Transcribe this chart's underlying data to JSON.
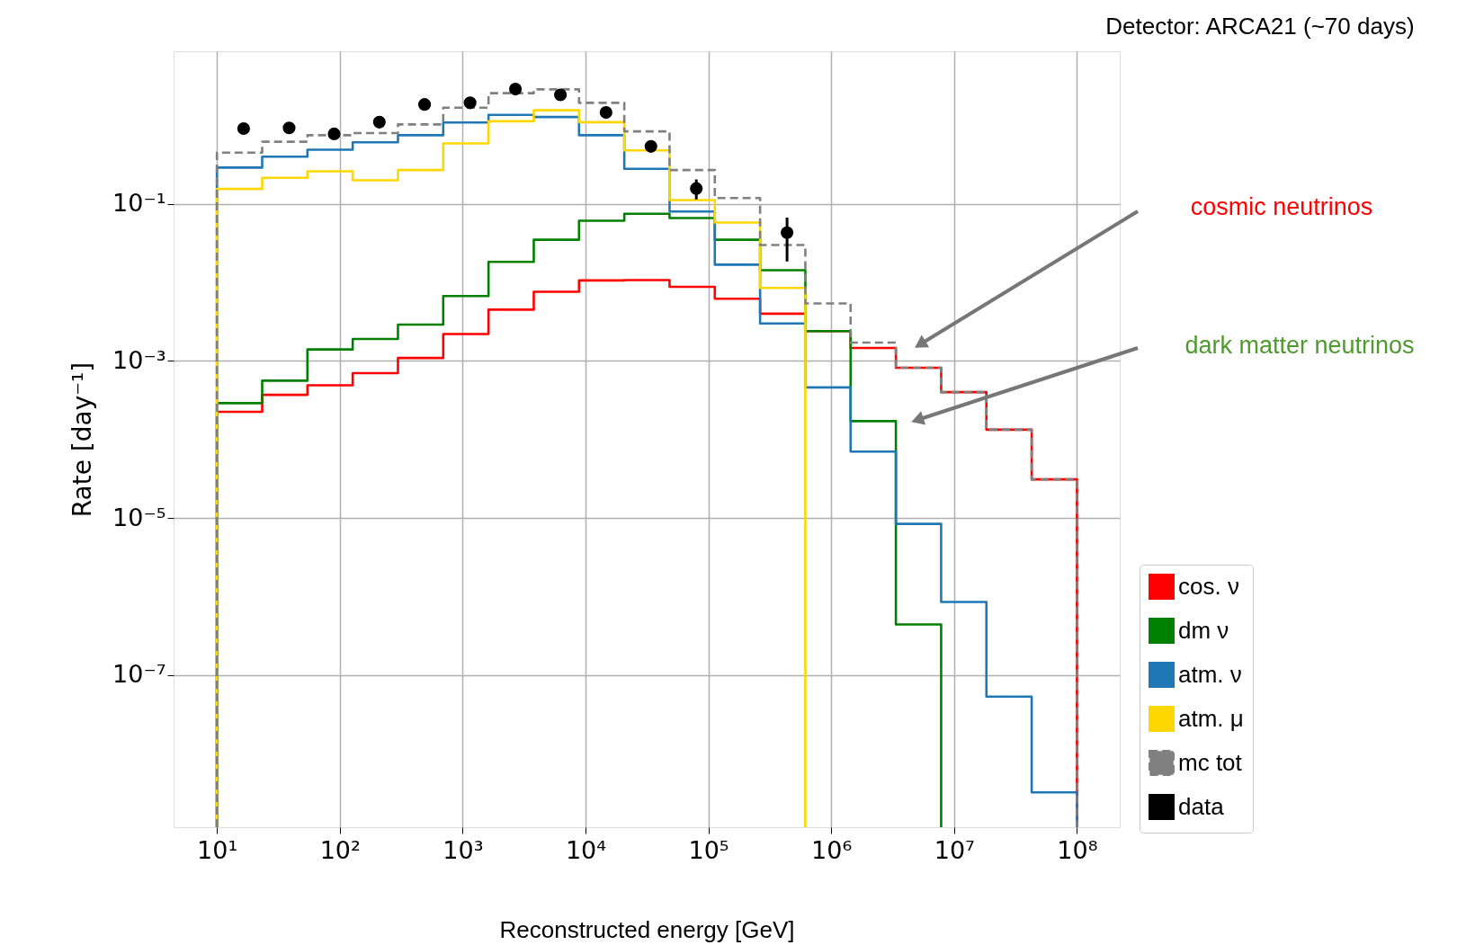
{
  "chart_data": {
    "type": "histogram",
    "title": "Detector: ARCA21 (~70 days)",
    "xlabel": "Reconstructed energy [GeV]",
    "ylabel": "Rate [day⁻¹]",
    "bins": [
      10,
      23.36,
      54.56,
      127.4,
      297.6,
      695.2,
      1624,
      3793,
      8859,
      20691,
      48329,
      112884,
      263665,
      615848,
      1438450,
      3359818,
      7847600,
      18329807,
      42813324,
      100000000
    ],
    "series": [
      {
        "name": "cos. ν",
        "color": "#ff0000",
        "values": [
          0.000225,
          0.00037,
          0.00049,
          0.0007,
          0.00109,
          0.0022,
          0.0045,
          0.0076,
          0.0106,
          0.0107,
          0.0088,
          0.0062,
          0.004,
          0.0024,
          0.00146,
          0.00082,
          0.0004,
          0.000133,
          3.1e-05
        ]
      },
      {
        "name": "dm ν",
        "color": "#008000",
        "bins": [
          10,
          23.36,
          54.56,
          127.4,
          297.6,
          695.2,
          1624,
          3793,
          8859,
          20691,
          48329,
          112884,
          263665,
          615848,
          1438450,
          3359818,
          7847600
        ],
        "values": [
          0.00029,
          0.00056,
          0.0014,
          0.0019,
          0.0029,
          0.0067,
          0.0183,
          0.035,
          0.061,
          0.075,
          0.066,
          0.035,
          0.0143,
          0.0024,
          0.000171,
          4.4e-07
        ]
      },
      {
        "name": "atm. ν",
        "color": "#1f77b4",
        "values": [
          0.29,
          0.4,
          0.49,
          0.61,
          0.75,
          1.09,
          1.36,
          1.28,
          0.75,
          0.28,
          0.08,
          0.0168,
          0.003,
          0.00046,
          7e-05,
          8.4e-06,
          8.5e-07,
          5.3e-08,
          3.2e-09
        ]
      },
      {
        "name": "atm. μ",
        "color": "#ffd700",
        "bins": [
          10,
          23.36,
          54.56,
          127.4,
          297.6,
          695.2,
          1624,
          3793,
          8859,
          20691,
          48329,
          112884,
          263665,
          615848
        ],
        "values": [
          0.155,
          0.215,
          0.26,
          0.2,
          0.27,
          0.59,
          1.13,
          1.56,
          1.1,
          0.48,
          0.112,
          0.058,
          0.0085
        ]
      },
      {
        "name": "mc tot",
        "color": "#808080",
        "line_style": "dashed",
        "values": [
          0.45,
          0.62,
          0.75,
          0.8,
          1.03,
          1.68,
          2.57,
          2.88,
          1.94,
          0.84,
          0.27,
          0.119,
          0.03,
          0.0054,
          0.00171,
          0.00082,
          0.0004,
          0.000133,
          3.1e-05
        ]
      },
      {
        "name": "data",
        "type": "scatter",
        "color": "#000000",
        "marker": "circle",
        "x": [
          16.5,
          38.7,
          90,
          210,
          490,
          1150,
          2690,
          6250,
          14700,
          34100,
          79800,
          437000
        ],
        "values": [
          0.91,
          0.93,
          0.78,
          1.1,
          1.85,
          1.94,
          2.9,
          2.45,
          1.46,
          0.54,
          0.157,
          0.043
        ],
        "errors": [
          null,
          null,
          null,
          null,
          null,
          null,
          null,
          null,
          null,
          null,
          [
            0.114,
            0.205
          ],
          [
            0.0185,
            0.067
          ]
        ]
      }
    ],
    "annotations": [
      "cosmic neutrinos",
      "dark matter neutrinos"
    ],
    "log": "xy",
    "xlim": [
      4.44,
      223000000
    ],
    "ylim": [
      1.15e-09,
      8.8
    ],
    "xticks": [
      {
        "value": 10,
        "label": "10¹"
      },
      {
        "value": 100,
        "label": "10²"
      },
      {
        "value": 1000,
        "label": "10³"
      },
      {
        "value": 10000,
        "label": "10⁴"
      },
      {
        "value": 100000,
        "label": "10⁵"
      },
      {
        "value": 1000000,
        "label": "10⁶"
      },
      {
        "value": 10000000,
        "label": "10⁷"
      },
      {
        "value": 100000000,
        "label": "10⁸"
      }
    ],
    "yticks": [
      {
        "value": 0.1,
        "label": "10⁻¹"
      },
      {
        "value": 0.001,
        "label": "10⁻³"
      },
      {
        "value": 1e-05,
        "label": "10⁻⁵"
      },
      {
        "value": 1e-07,
        "label": "10⁻⁷"
      }
    ],
    "grid": true,
    "legend": "bottom right"
  }
}
